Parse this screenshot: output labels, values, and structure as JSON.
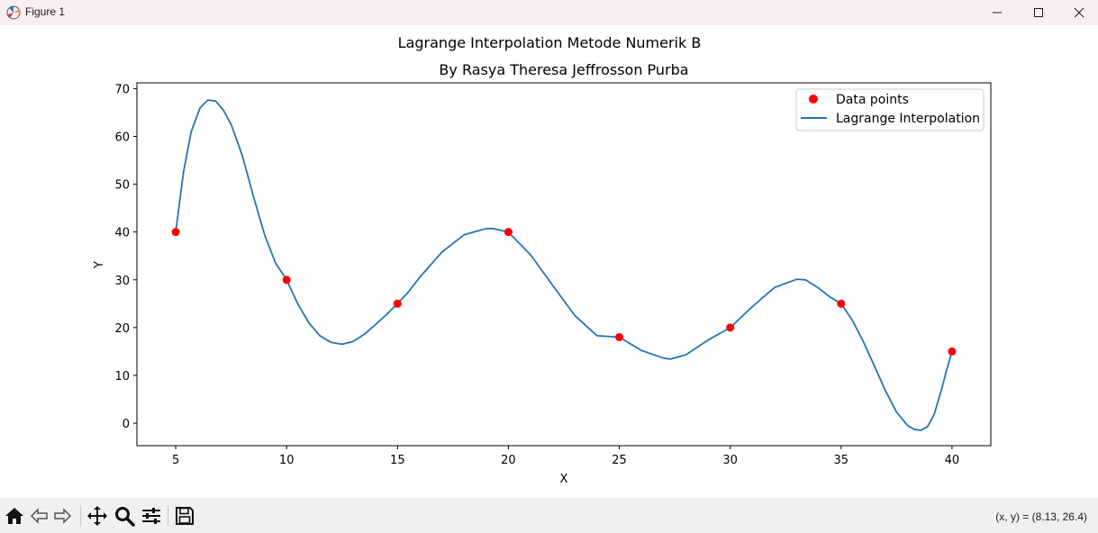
{
  "window": {
    "title": "Figure 1"
  },
  "window_controls": [
    {
      "name": "minimize-button",
      "icon": "minimize-icon"
    },
    {
      "name": "maximize-button",
      "icon": "maximize-icon"
    },
    {
      "name": "close-button",
      "icon": "close-icon"
    }
  ],
  "toolbar": {
    "buttons": [
      {
        "name": "home-button",
        "icon": "home-icon"
      },
      {
        "name": "back-button",
        "icon": "back-arrow-icon"
      },
      {
        "name": "forward-button",
        "icon": "forward-arrow-icon"
      },
      {
        "name": "pan-button",
        "icon": "move-icon"
      },
      {
        "name": "zoom-button",
        "icon": "zoom-icon"
      },
      {
        "name": "configure-subplots-button",
        "icon": "sliders-icon"
      },
      {
        "name": "save-button",
        "icon": "save-icon"
      }
    ],
    "coordinates": "(x, y) = (8.13, 26.4)"
  },
  "chart_data": {
    "type": "line",
    "title": "Lagrange Interpolation Metode Numerik B",
    "subtitle": "By Rasya Theresa Jeffrosson Purba",
    "xlabel": "X",
    "ylabel": "Y",
    "xlim": [
      3.25,
      41.75
    ],
    "ylim": [
      -4.7,
      71.2
    ],
    "xticks": [
      5,
      10,
      15,
      20,
      25,
      30,
      35,
      40
    ],
    "yticks": [
      0,
      10,
      20,
      30,
      40,
      50,
      60,
      70
    ],
    "grid": false,
    "legend_position": "top-right",
    "series": [
      {
        "name": "Data points",
        "kind": "scatter",
        "color": "#ff0000",
        "x": [
          5,
          10,
          15,
          20,
          25,
          30,
          35,
          40
        ],
        "y": [
          40,
          30,
          25,
          40,
          18,
          20,
          25,
          15
        ]
      },
      {
        "name": "Lagrange Interpolation",
        "kind": "line",
        "color": "#1f77b4",
        "x": [
          5,
          5.35,
          5.7,
          6.1,
          6.45,
          6.8,
          7.15,
          7.5,
          8,
          8.5,
          9,
          9.5,
          10,
          10.5,
          11,
          11.5,
          12,
          12.5,
          13,
          13.5,
          14,
          14.5,
          15,
          15.5,
          16,
          17,
          18,
          19,
          19.3,
          20,
          21,
          22,
          23,
          24,
          25,
          26,
          27,
          27.3,
          28,
          29,
          30,
          31,
          32,
          33,
          33.4,
          34,
          34.5,
          35,
          35.5,
          36,
          36.5,
          37,
          37.5,
          38,
          38.3,
          38.6,
          38.9,
          39.2,
          39.5,
          39.75,
          40
        ],
        "y": [
          40,
          52.5,
          61,
          66,
          67.6,
          67.4,
          65.5,
          62.5,
          56,
          47.5,
          39.5,
          33.5,
          30,
          25,
          21,
          18.3,
          16.9,
          16.5,
          17.1,
          18.6,
          20.6,
          22.7,
          25,
          27.5,
          30.5,
          35.8,
          39.4,
          40.7,
          40.7,
          40,
          35.2,
          28.8,
          22.5,
          18.3,
          18,
          15.2,
          13.6,
          13.4,
          14.3,
          17.4,
          20,
          24.4,
          28.4,
          30.1,
          30,
          28.2,
          26.4,
          25,
          21.6,
          17.1,
          12,
          6.8,
          2.3,
          -0.5,
          -1.3,
          -1.5,
          -0.7,
          1.9,
          6.6,
          11,
          15
        ]
      }
    ]
  }
}
